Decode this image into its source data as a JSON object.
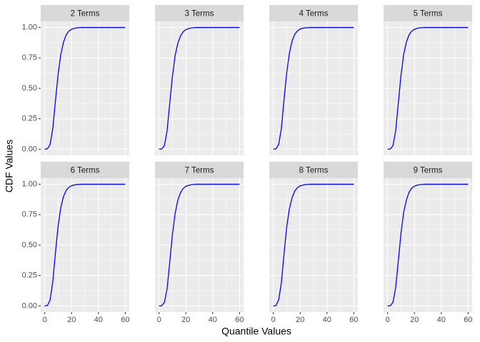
{
  "xlabel": "Quantile Values",
  "ylabel": "CDF Values",
  "chart_data": [
    {
      "type": "line",
      "title": "2 Terms",
      "color": "#0000ff",
      "grid": true,
      "x": [
        0,
        2,
        4,
        6,
        8,
        10,
        12,
        14,
        16,
        18,
        20,
        22,
        24,
        26,
        28,
        30,
        40,
        50,
        60
      ],
      "values": [
        0,
        0.003,
        0.04,
        0.17,
        0.4,
        0.62,
        0.78,
        0.88,
        0.94,
        0.97,
        0.985,
        0.993,
        0.997,
        0.999,
        1,
        1,
        1,
        1,
        1
      ],
      "xlim": [
        -3,
        63
      ],
      "ylim": [
        -0.05,
        1.05
      ],
      "xticks": [
        0,
        20,
        40,
        60
      ],
      "yticks": [
        {
          "value": 0,
          "label": "0.00"
        },
        {
          "value": 0.25,
          "label": "0.25"
        },
        {
          "value": 0.5,
          "label": "0.50"
        },
        {
          "value": 0.75,
          "label": "0.75"
        },
        {
          "value": 1,
          "label": "1.00"
        }
      ]
    },
    {
      "type": "line",
      "title": "3 Terms",
      "color": "#0000ff",
      "grid": true,
      "x": [
        0,
        2,
        4,
        6,
        8,
        10,
        12,
        14,
        16,
        18,
        20,
        22,
        24,
        26,
        28,
        30,
        40,
        50,
        60
      ],
      "values": [
        0,
        0.002,
        0.03,
        0.15,
        0.38,
        0.6,
        0.77,
        0.87,
        0.93,
        0.965,
        0.982,
        0.991,
        0.996,
        0.998,
        1,
        1,
        1,
        1,
        1
      ],
      "xlim": [
        -3,
        63
      ],
      "ylim": [
        -0.05,
        1.05
      ],
      "xticks": [
        0,
        20,
        40,
        60
      ],
      "yticks": [
        {
          "value": 0,
          "label": "0.00"
        },
        {
          "value": 0.25,
          "label": "0.25"
        },
        {
          "value": 0.5,
          "label": "0.50"
        },
        {
          "value": 0.75,
          "label": "0.75"
        },
        {
          "value": 1,
          "label": "1.00"
        }
      ]
    },
    {
      "type": "line",
      "title": "4 Terms",
      "color": "#0000ff",
      "grid": true,
      "x": [
        0,
        2,
        4,
        6,
        8,
        10,
        12,
        14,
        16,
        18,
        20,
        22,
        24,
        26,
        28,
        30,
        40,
        50,
        60
      ],
      "values": [
        0,
        0.003,
        0.04,
        0.17,
        0.41,
        0.63,
        0.79,
        0.89,
        0.945,
        0.972,
        0.987,
        0.994,
        0.997,
        0.999,
        1,
        1,
        1,
        1,
        1
      ],
      "xlim": [
        -3,
        63
      ],
      "ylim": [
        -0.05,
        1.05
      ],
      "xticks": [
        0,
        20,
        40,
        60
      ],
      "yticks": [
        {
          "value": 0,
          "label": "0.00"
        },
        {
          "value": 0.25,
          "label": "0.25"
        },
        {
          "value": 0.5,
          "label": "0.50"
        },
        {
          "value": 0.75,
          "label": "0.75"
        },
        {
          "value": 1,
          "label": "1.00"
        }
      ]
    },
    {
      "type": "line",
      "title": "5 Terms",
      "color": "#0000ff",
      "grid": true,
      "x": [
        0,
        2,
        4,
        6,
        8,
        10,
        12,
        14,
        16,
        18,
        20,
        22,
        24,
        26,
        28,
        30,
        40,
        50,
        60
      ],
      "values": [
        0,
        0.002,
        0.03,
        0.15,
        0.38,
        0.61,
        0.78,
        0.88,
        0.94,
        0.97,
        0.985,
        0.993,
        0.997,
        0.999,
        1,
        1,
        1,
        1,
        1
      ],
      "xlim": [
        -3,
        63
      ],
      "ylim": [
        -0.05,
        1.05
      ],
      "xticks": [
        0,
        20,
        40,
        60
      ],
      "yticks": [
        {
          "value": 0,
          "label": "0.00"
        },
        {
          "value": 0.25,
          "label": "0.25"
        },
        {
          "value": 0.5,
          "label": "0.50"
        },
        {
          "value": 0.75,
          "label": "0.75"
        },
        {
          "value": 1,
          "label": "1.00"
        }
      ]
    },
    {
      "type": "line",
      "title": "6 Terms",
      "color": "#0000ff",
      "grid": true,
      "x": [
        0,
        2,
        4,
        6,
        8,
        10,
        12,
        14,
        16,
        18,
        20,
        22,
        24,
        26,
        28,
        30,
        40,
        50,
        60
      ],
      "values": [
        0,
        0.004,
        0.05,
        0.2,
        0.44,
        0.66,
        0.81,
        0.9,
        0.95,
        0.975,
        0.988,
        0.994,
        0.997,
        0.999,
        1,
        1,
        1,
        1,
        1
      ],
      "xlim": [
        -3,
        63
      ],
      "ylim": [
        -0.05,
        1.05
      ],
      "xticks": [
        0,
        20,
        40,
        60
      ],
      "yticks": [
        {
          "value": 0,
          "label": "0.00"
        },
        {
          "value": 0.25,
          "label": "0.25"
        },
        {
          "value": 0.5,
          "label": "0.50"
        },
        {
          "value": 0.75,
          "label": "0.75"
        },
        {
          "value": 1,
          "label": "1.00"
        }
      ]
    },
    {
      "type": "line",
      "title": "7 Terms",
      "color": "#0000ff",
      "grid": true,
      "x": [
        0,
        2,
        4,
        6,
        8,
        10,
        12,
        14,
        16,
        18,
        20,
        22,
        24,
        26,
        28,
        30,
        40,
        50,
        60
      ],
      "values": [
        0,
        0.002,
        0.03,
        0.14,
        0.36,
        0.59,
        0.76,
        0.87,
        0.93,
        0.965,
        0.982,
        0.991,
        0.996,
        0.998,
        1,
        1,
        1,
        1,
        1
      ],
      "xlim": [
        -3,
        63
      ],
      "ylim": [
        -0.05,
        1.05
      ],
      "xticks": [
        0,
        20,
        40,
        60
      ],
      "yticks": [
        {
          "value": 0,
          "label": "0.00"
        },
        {
          "value": 0.25,
          "label": "0.25"
        },
        {
          "value": 0.5,
          "label": "0.50"
        },
        {
          "value": 0.75,
          "label": "0.75"
        },
        {
          "value": 1,
          "label": "1.00"
        }
      ]
    },
    {
      "type": "line",
      "title": "8 Terms",
      "color": "#0000ff",
      "grid": true,
      "x": [
        0,
        2,
        4,
        6,
        8,
        10,
        12,
        14,
        16,
        18,
        20,
        22,
        24,
        26,
        28,
        30,
        40,
        50,
        60
      ],
      "values": [
        0,
        0.004,
        0.05,
        0.19,
        0.43,
        0.65,
        0.8,
        0.89,
        0.945,
        0.972,
        0.986,
        0.993,
        0.997,
        0.999,
        1,
        1,
        1,
        1,
        1
      ],
      "xlim": [
        -3,
        63
      ],
      "ylim": [
        -0.05,
        1.05
      ],
      "xticks": [
        0,
        20,
        40,
        60
      ],
      "yticks": [
        {
          "value": 0,
          "label": "0.00"
        },
        {
          "value": 0.25,
          "label": "0.25"
        },
        {
          "value": 0.5,
          "label": "0.50"
        },
        {
          "value": 0.75,
          "label": "0.75"
        },
        {
          "value": 1,
          "label": "1.00"
        }
      ]
    },
    {
      "type": "line",
      "title": "9 Terms",
      "color": "#0000ff",
      "grid": true,
      "x": [
        0,
        2,
        4,
        6,
        8,
        10,
        12,
        14,
        16,
        18,
        20,
        22,
        24,
        26,
        28,
        30,
        40,
        50,
        60
      ],
      "values": [
        0,
        0.002,
        0.03,
        0.15,
        0.37,
        0.6,
        0.77,
        0.87,
        0.935,
        0.968,
        0.984,
        0.992,
        0.996,
        0.998,
        1,
        1,
        1,
        1,
        1
      ],
      "xlim": [
        -3,
        63
      ],
      "ylim": [
        -0.05,
        1.05
      ],
      "xticks": [
        0,
        20,
        40,
        60
      ],
      "yticks": [
        {
          "value": 0,
          "label": "0.00"
        },
        {
          "value": 0.25,
          "label": "0.25"
        },
        {
          "value": 0.5,
          "label": "0.50"
        },
        {
          "value": 0.75,
          "label": "0.75"
        },
        {
          "value": 1,
          "label": "1.00"
        }
      ]
    }
  ]
}
